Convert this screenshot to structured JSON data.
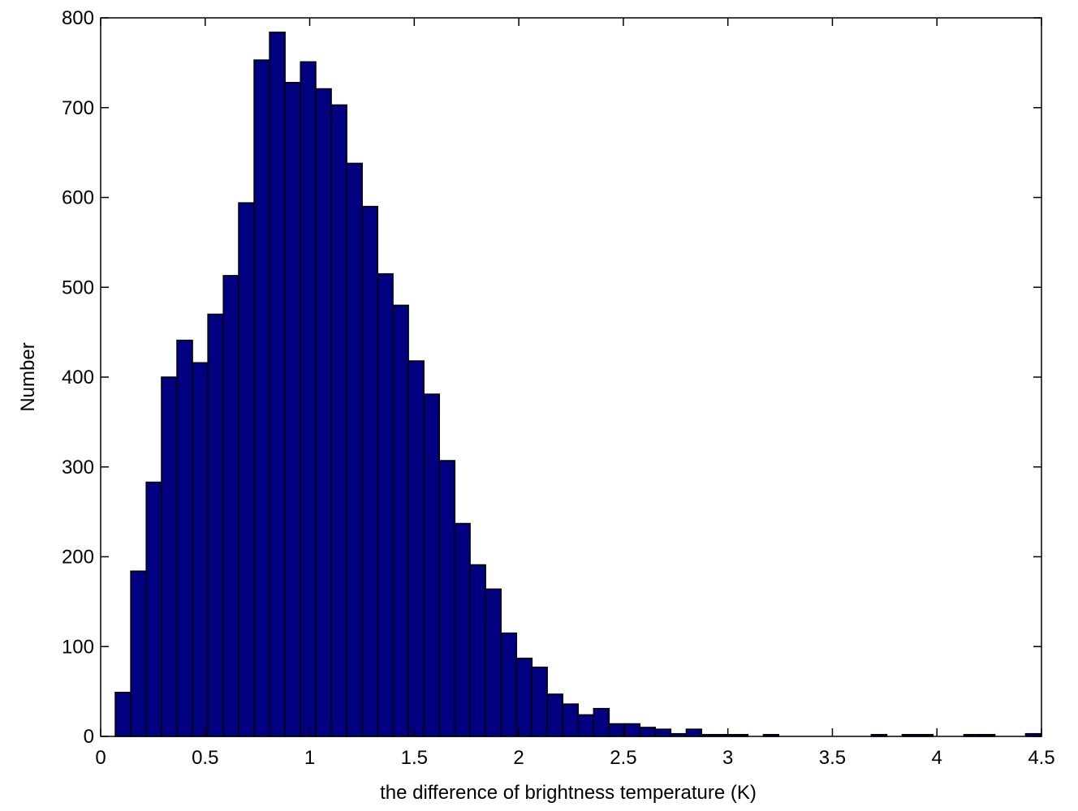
{
  "chart_data": {
    "type": "histogram",
    "xlabel": "the difference of brightness temperature (K)",
    "ylabel": "Number",
    "bins": [
      0.07,
      0.144,
      0.218,
      0.291,
      0.365,
      0.439,
      0.513,
      0.587,
      0.66,
      0.734,
      0.808,
      0.882,
      0.956,
      1.029,
      1.103,
      1.177,
      1.251,
      1.325,
      1.398,
      1.472,
      1.546,
      1.62,
      1.694,
      1.767,
      1.841,
      1.915,
      1.989,
      2.063,
      2.136,
      2.21,
      2.284,
      2.358,
      2.432,
      2.505,
      2.579,
      2.653,
      2.727,
      2.801,
      2.874,
      2.948,
      3.022,
      3.096,
      3.17,
      3.243,
      3.317,
      3.391,
      3.465,
      3.539,
      3.612,
      3.686,
      3.76,
      3.834,
      3.908,
      3.981,
      4.055,
      4.129,
      4.203,
      4.277,
      4.35,
      4.424,
      4.498
    ],
    "values": [
      49,
      184,
      283,
      400,
      441,
      416,
      470,
      513,
      594,
      753,
      784,
      728,
      751,
      721,
      703,
      638,
      590,
      515,
      480,
      418,
      381,
      307,
      237,
      191,
      164,
      115,
      87,
      77,
      47,
      36,
      24,
      31,
      14,
      14,
      10,
      8,
      3,
      8,
      2,
      2,
      2,
      0,
      2,
      0,
      0,
      0,
      0,
      0,
      0,
      2,
      0,
      2,
      2,
      0,
      0,
      2,
      2,
      0,
      0,
      3
    ],
    "color": "#000080",
    "xlim": [
      0,
      4.5
    ],
    "ylim": [
      0,
      800
    ],
    "xticks": [
      0,
      0.5,
      1,
      1.5,
      2,
      2.5,
      3,
      3.5,
      4,
      4.5
    ],
    "yticks": [
      0,
      100,
      200,
      300,
      400,
      500,
      600,
      700,
      800
    ],
    "grid": false
  }
}
